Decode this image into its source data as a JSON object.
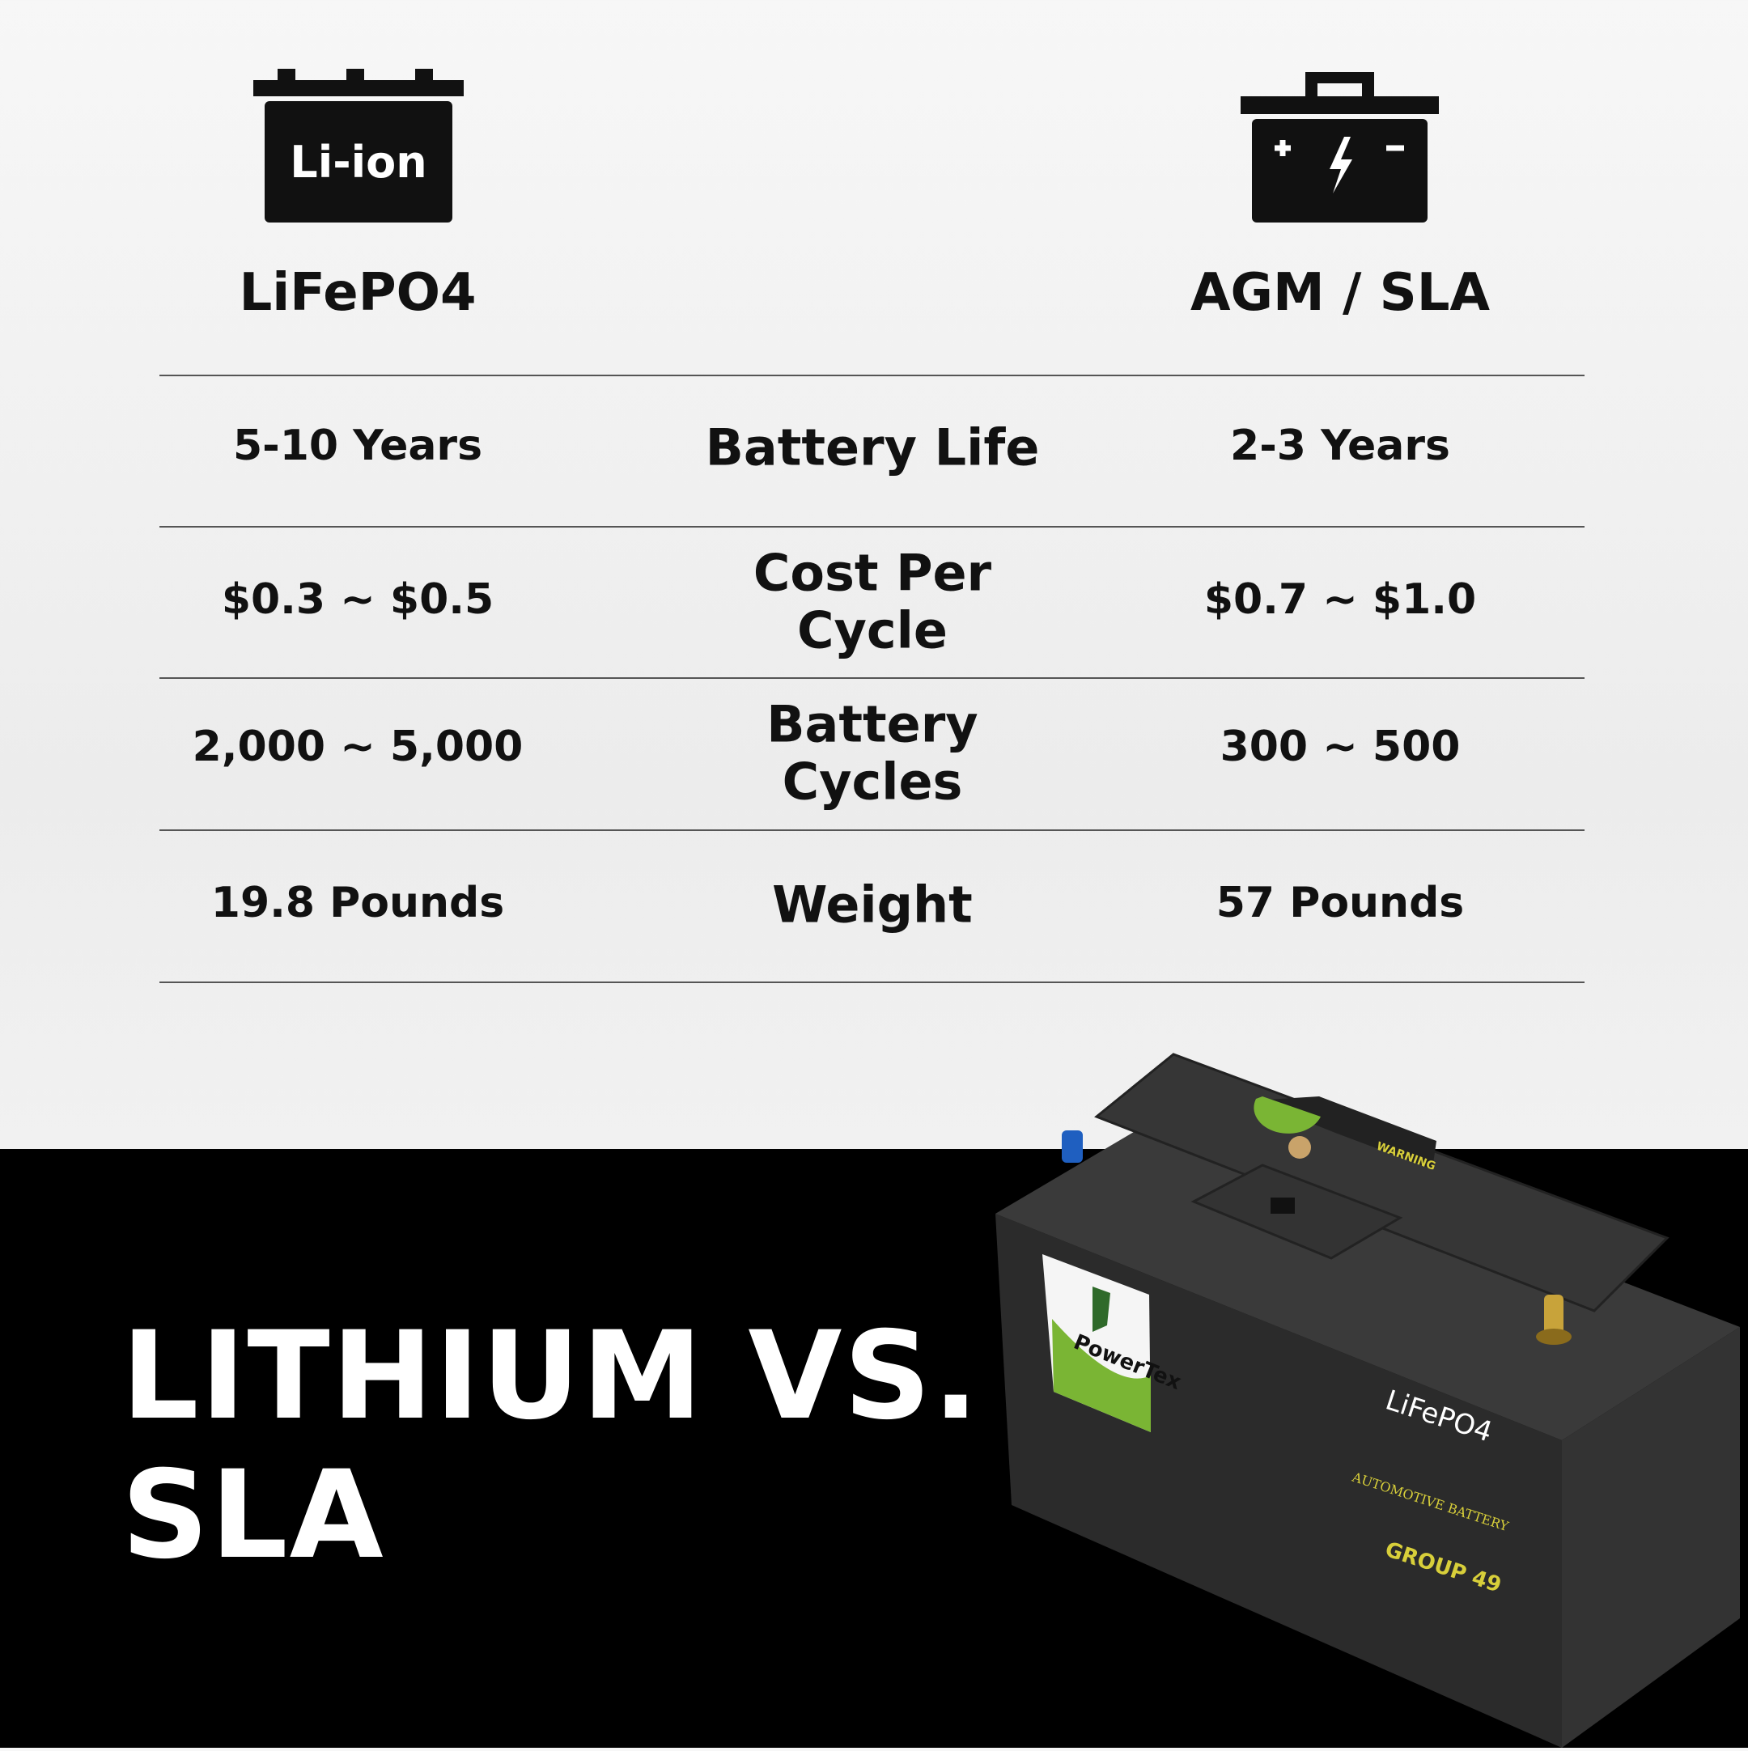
{
  "columns": {
    "left": {
      "title": "LiFePO4",
      "icon": "li-ion-battery-icon",
      "icon_label": "Li-ion"
    },
    "right": {
      "title": "AGM / SLA",
      "icon": "lead-acid-battery-icon"
    }
  },
  "rows": [
    {
      "label": "Battery Life",
      "left": "5-10 Years",
      "right": "2-3 Years"
    },
    {
      "label": "Cost Per Cycle",
      "left": "$0.3 ~ $0.5",
      "right": "$0.7 ~ $1.0"
    },
    {
      "label": "Battery Cycles",
      "left": "2,000 ~ 5,000",
      "right": "300 ~ 500"
    },
    {
      "label": "Weight",
      "left": "19.8 Pounds",
      "right": "57 Pounds"
    }
  ],
  "headline": {
    "line1": "LITHIUM VS.",
    "line2": "SLA"
  },
  "product": {
    "brand": "PowerTex",
    "chemistry": "LiFePO4",
    "type": "AUTOMOTIVE BATTERY",
    "group": "GROUP 49",
    "warning": "WARNING"
  },
  "colors": {
    "background_top": "#f1f1f1",
    "background_bottom": "#000000",
    "text": "#111111",
    "accent_green": "#7ab534",
    "label_yellow": "#d8cf3a"
  }
}
